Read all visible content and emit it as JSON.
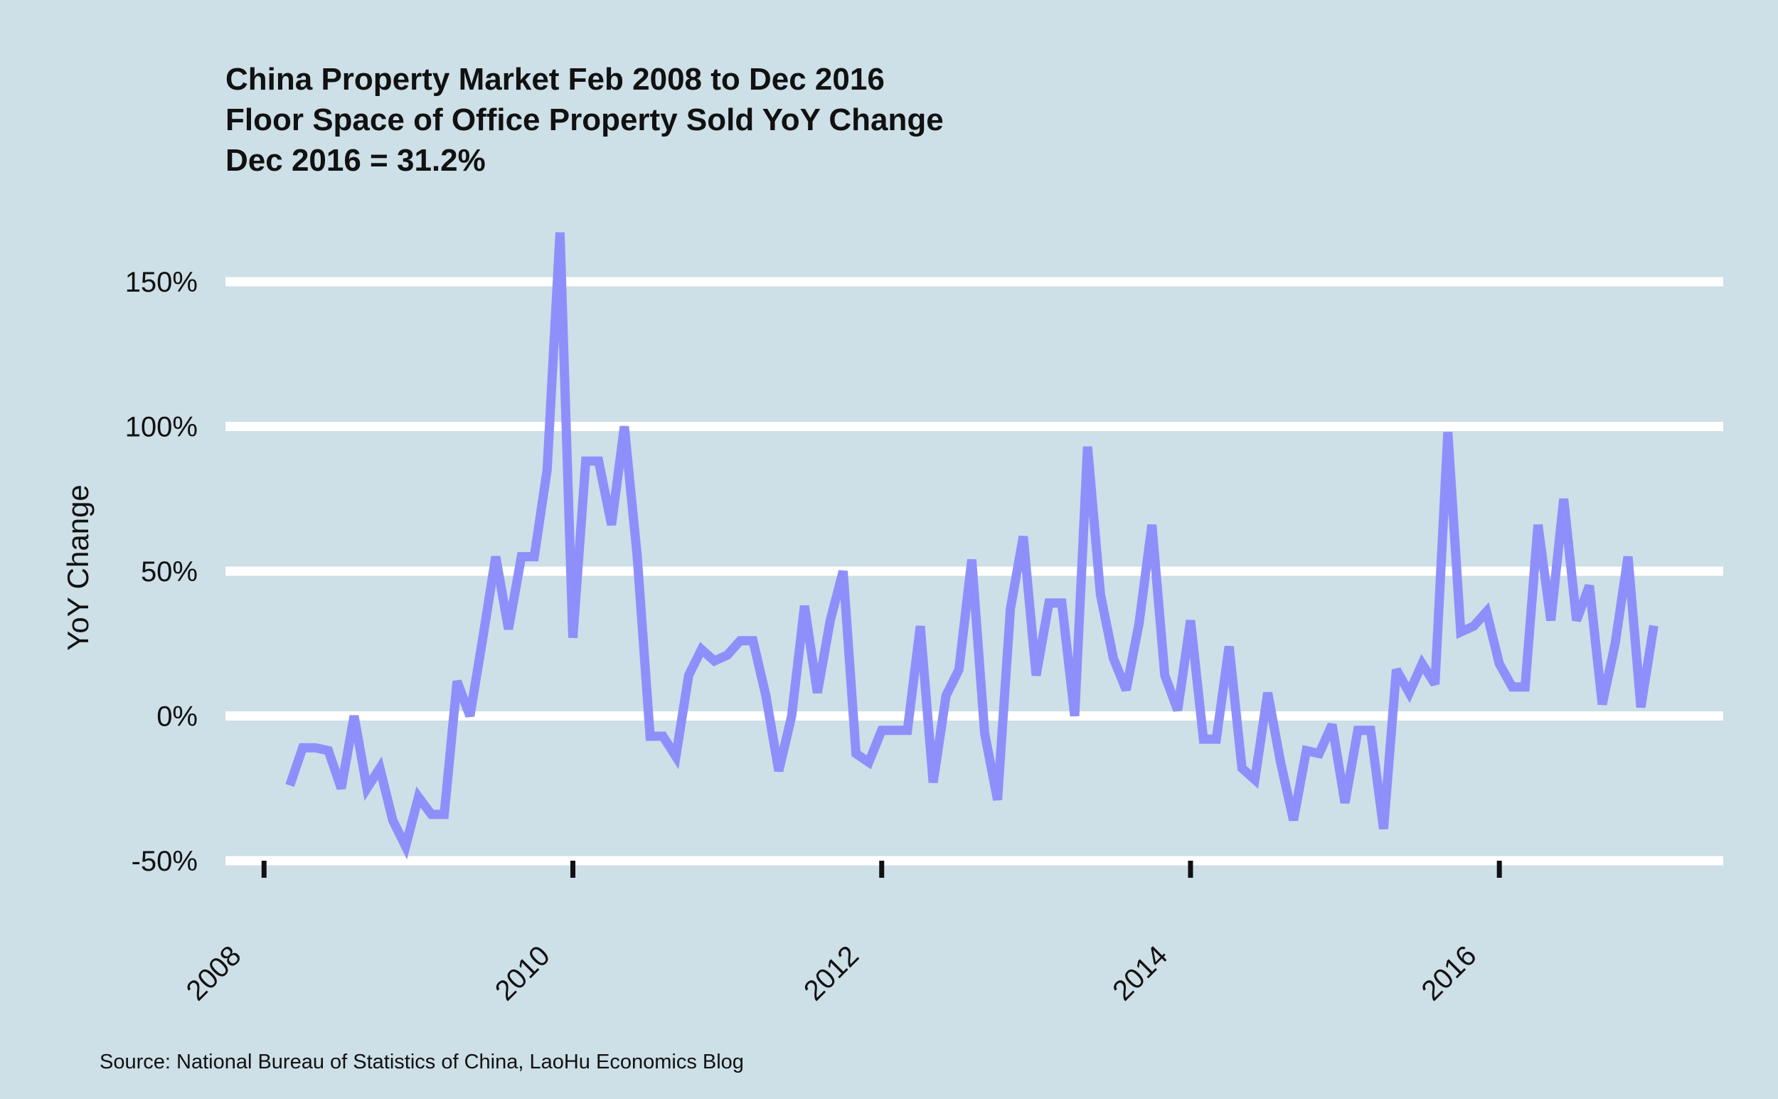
{
  "chart_data": {
    "type": "line",
    "title_lines": [
      "China Property Market Feb 2008 to Dec 2016",
      "Floor Space of Office Property Sold YoY Change",
      "Dec 2016 = 31.2%"
    ],
    "xlabel": "",
    "ylabel": "YoY Change",
    "source": "Source: National Bureau of Statistics of China, LaoHu Economics Blog",
    "ylim": [
      -50,
      150
    ],
    "yticks": [
      -50,
      0,
      50,
      100,
      150
    ],
    "ytick_labels": [
      "-50%",
      "0%",
      "50%",
      "100%",
      "150%"
    ],
    "xlim": [
      2007.75,
      2017.45
    ],
    "xticks": [
      2008,
      2010,
      2012,
      2014,
      2016
    ],
    "xtick_labels": [
      "2008",
      "2010",
      "2012",
      "2014",
      "2016"
    ],
    "colors": {
      "background": "#cddfe7",
      "grid": "#ffffff",
      "line": "#8f8ffb",
      "text": "#111111"
    },
    "series": [
      {
        "name": "Floor Space of Office Property Sold YoY Change",
        "x_start": 2008.1667,
        "x_step": 0.0833333,
        "values": [
          -24,
          -11,
          -11,
          -12,
          -25,
          0,
          -25,
          -18,
          -36,
          -45,
          -28,
          -34,
          -34,
          12,
          0,
          27,
          55,
          30,
          55,
          55,
          85,
          167,
          27,
          88,
          88,
          66,
          100,
          55,
          -7,
          -7,
          -14,
          14,
          23,
          19,
          21,
          26,
          26,
          7,
          -19,
          0,
          38,
          8,
          33,
          50,
          -13,
          -16,
          -5,
          -5,
          -5,
          31,
          -23,
          7,
          16,
          54,
          -6,
          -29,
          37,
          62,
          14,
          39,
          39,
          0,
          93,
          42,
          20,
          9,
          32,
          66,
          14,
          2,
          33,
          -8,
          -8,
          24,
          -18,
          -22,
          8,
          -16,
          -36,
          -12,
          -13,
          -3,
          -30,
          -5,
          -5,
          -39,
          16,
          8,
          18,
          11,
          98,
          29,
          31,
          36,
          18,
          10,
          10,
          66,
          33,
          75,
          33,
          45,
          4,
          25,
          55,
          3,
          31.2
        ]
      }
    ]
  }
}
